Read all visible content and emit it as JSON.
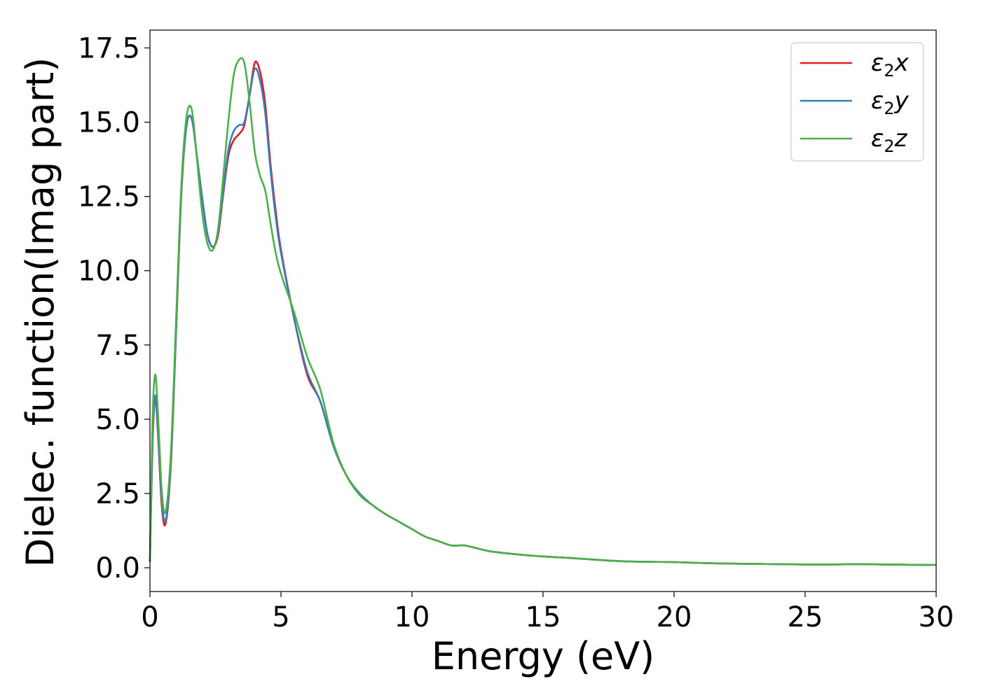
{
  "chart_data": {
    "type": "line",
    "xlabel": "Energy (eV)",
    "ylabel": "Dielec. function(Imag part)",
    "xlim": [
      0,
      30
    ],
    "ylim": [
      -0.8,
      18.1
    ],
    "xticks": [
      0,
      5,
      10,
      15,
      20,
      25,
      30
    ],
    "yticks": [
      0.0,
      2.5,
      5.0,
      7.5,
      10.0,
      12.5,
      15.0,
      17.5
    ],
    "xtick_labels": [
      "0",
      "5",
      "10",
      "15",
      "20",
      "25",
      "30"
    ],
    "ytick_labels": [
      "0.0",
      "2.5",
      "5.0",
      "7.5",
      "10.0",
      "12.5",
      "15.0",
      "17.5"
    ],
    "grid": false,
    "legend_position": "top-right",
    "series": [
      {
        "name": "ε₂x",
        "legend_main": "ε",
        "legend_sub": "2",
        "legend_suffix": "x",
        "color": "#e41a1c",
        "x": [
          0,
          0.1,
          0.2,
          0.3,
          0.45,
          0.6,
          0.8,
          1.0,
          1.2,
          1.4,
          1.6,
          1.8,
          2.0,
          2.2,
          2.4,
          2.6,
          2.8,
          3.0,
          3.2,
          3.4,
          3.6,
          3.8,
          4.0,
          4.2,
          4.4,
          4.6,
          4.8,
          5.0,
          5.5,
          6.0,
          6.5,
          7.0,
          7.5,
          8.0,
          8.5,
          9.0,
          9.5,
          10.0,
          10.5,
          11.0,
          11.5,
          12.0,
          12.5,
          13.0,
          14.0,
          15.0,
          16.0,
          17.0,
          18.0,
          19.0,
          20.0,
          21.0,
          22.0,
          23.0,
          24.0,
          25.0,
          26.0,
          27.0,
          28.0,
          29.0,
          30.0
        ],
        "values": [
          0.2,
          4.2,
          5.7,
          4.6,
          2.1,
          1.5,
          3.5,
          8.0,
          12.6,
          14.9,
          15.1,
          13.8,
          12.4,
          11.2,
          10.8,
          11.2,
          12.6,
          13.9,
          14.4,
          14.6,
          14.9,
          15.9,
          17.0,
          16.7,
          15.6,
          13.6,
          12.0,
          10.7,
          8.4,
          6.5,
          5.6,
          4.1,
          3.1,
          2.5,
          2.1,
          1.8,
          1.55,
          1.3,
          1.05,
          0.9,
          0.75,
          0.75,
          0.65,
          0.55,
          0.45,
          0.38,
          0.33,
          0.27,
          0.22,
          0.2,
          0.19,
          0.16,
          0.14,
          0.13,
          0.12,
          0.11,
          0.11,
          0.12,
          0.11,
          0.1,
          0.09
        ]
      },
      {
        "name": "ε₂y",
        "legend_main": "ε",
        "legend_sub": "2",
        "legend_suffix": "y",
        "color": "#377eb8",
        "x": [
          0,
          0.1,
          0.2,
          0.3,
          0.45,
          0.6,
          0.8,
          1.0,
          1.2,
          1.4,
          1.6,
          1.8,
          2.0,
          2.2,
          2.4,
          2.6,
          2.8,
          3.0,
          3.2,
          3.4,
          3.6,
          3.8,
          4.0,
          4.2,
          4.4,
          4.6,
          4.8,
          5.0,
          5.5,
          6.0,
          6.5,
          7.0,
          7.5,
          8.0,
          8.5,
          9.0,
          9.5,
          10.0,
          10.5,
          11.0,
          11.5,
          12.0,
          12.5,
          13.0,
          14.0,
          15.0,
          16.0,
          17.0,
          18.0,
          19.0,
          20.0,
          21.0,
          22.0,
          23.0,
          24.0,
          25.0,
          26.0,
          27.0,
          28.0,
          29.0,
          30.0
        ],
        "values": [
          0.2,
          4.3,
          5.8,
          4.7,
          2.3,
          1.6,
          3.6,
          8.1,
          12.7,
          14.9,
          15.1,
          13.8,
          12.4,
          11.2,
          10.8,
          11.3,
          12.7,
          14.1,
          14.7,
          14.9,
          15.0,
          15.9,
          16.8,
          16.4,
          15.3,
          13.4,
          11.8,
          10.6,
          8.4,
          6.6,
          5.6,
          4.1,
          3.1,
          2.5,
          2.1,
          1.8,
          1.55,
          1.3,
          1.05,
          0.9,
          0.75,
          0.75,
          0.65,
          0.55,
          0.45,
          0.38,
          0.33,
          0.27,
          0.22,
          0.2,
          0.19,
          0.16,
          0.14,
          0.13,
          0.12,
          0.11,
          0.11,
          0.12,
          0.11,
          0.1,
          0.09
        ]
      },
      {
        "name": "ε₂z",
        "legend_main": "ε",
        "legend_sub": "2",
        "legend_suffix": "z",
        "color": "#4daf4a",
        "x": [
          0,
          0.1,
          0.2,
          0.3,
          0.45,
          0.6,
          0.8,
          1.0,
          1.2,
          1.4,
          1.6,
          1.8,
          2.0,
          2.2,
          2.4,
          2.6,
          2.8,
          3.0,
          3.2,
          3.4,
          3.6,
          3.8,
          4.0,
          4.2,
          4.4,
          4.6,
          4.8,
          5.0,
          5.5,
          6.0,
          6.5,
          7.0,
          7.5,
          8.0,
          8.5,
          9.0,
          9.5,
          10.0,
          10.5,
          11.0,
          11.5,
          12.0,
          12.5,
          13.0,
          14.0,
          15.0,
          16.0,
          17.0,
          18.0,
          19.0,
          20.0,
          21.0,
          22.0,
          23.0,
          24.0,
          25.0,
          26.0,
          27.0,
          28.0,
          29.0,
          30.0
        ],
        "values": [
          0.3,
          5.0,
          6.5,
          5.3,
          2.6,
          1.9,
          3.9,
          8.4,
          12.9,
          15.2,
          15.4,
          13.7,
          11.9,
          10.9,
          10.7,
          11.4,
          13.2,
          15.1,
          16.6,
          17.1,
          17.0,
          15.7,
          14.0,
          13.2,
          12.7,
          11.6,
          10.6,
          9.9,
          8.6,
          7.1,
          6.0,
          4.2,
          3.1,
          2.45,
          2.1,
          1.8,
          1.55,
          1.3,
          1.05,
          0.9,
          0.75,
          0.75,
          0.65,
          0.55,
          0.45,
          0.38,
          0.33,
          0.27,
          0.22,
          0.2,
          0.19,
          0.16,
          0.14,
          0.13,
          0.12,
          0.11,
          0.11,
          0.12,
          0.11,
          0.1,
          0.09
        ]
      }
    ]
  }
}
